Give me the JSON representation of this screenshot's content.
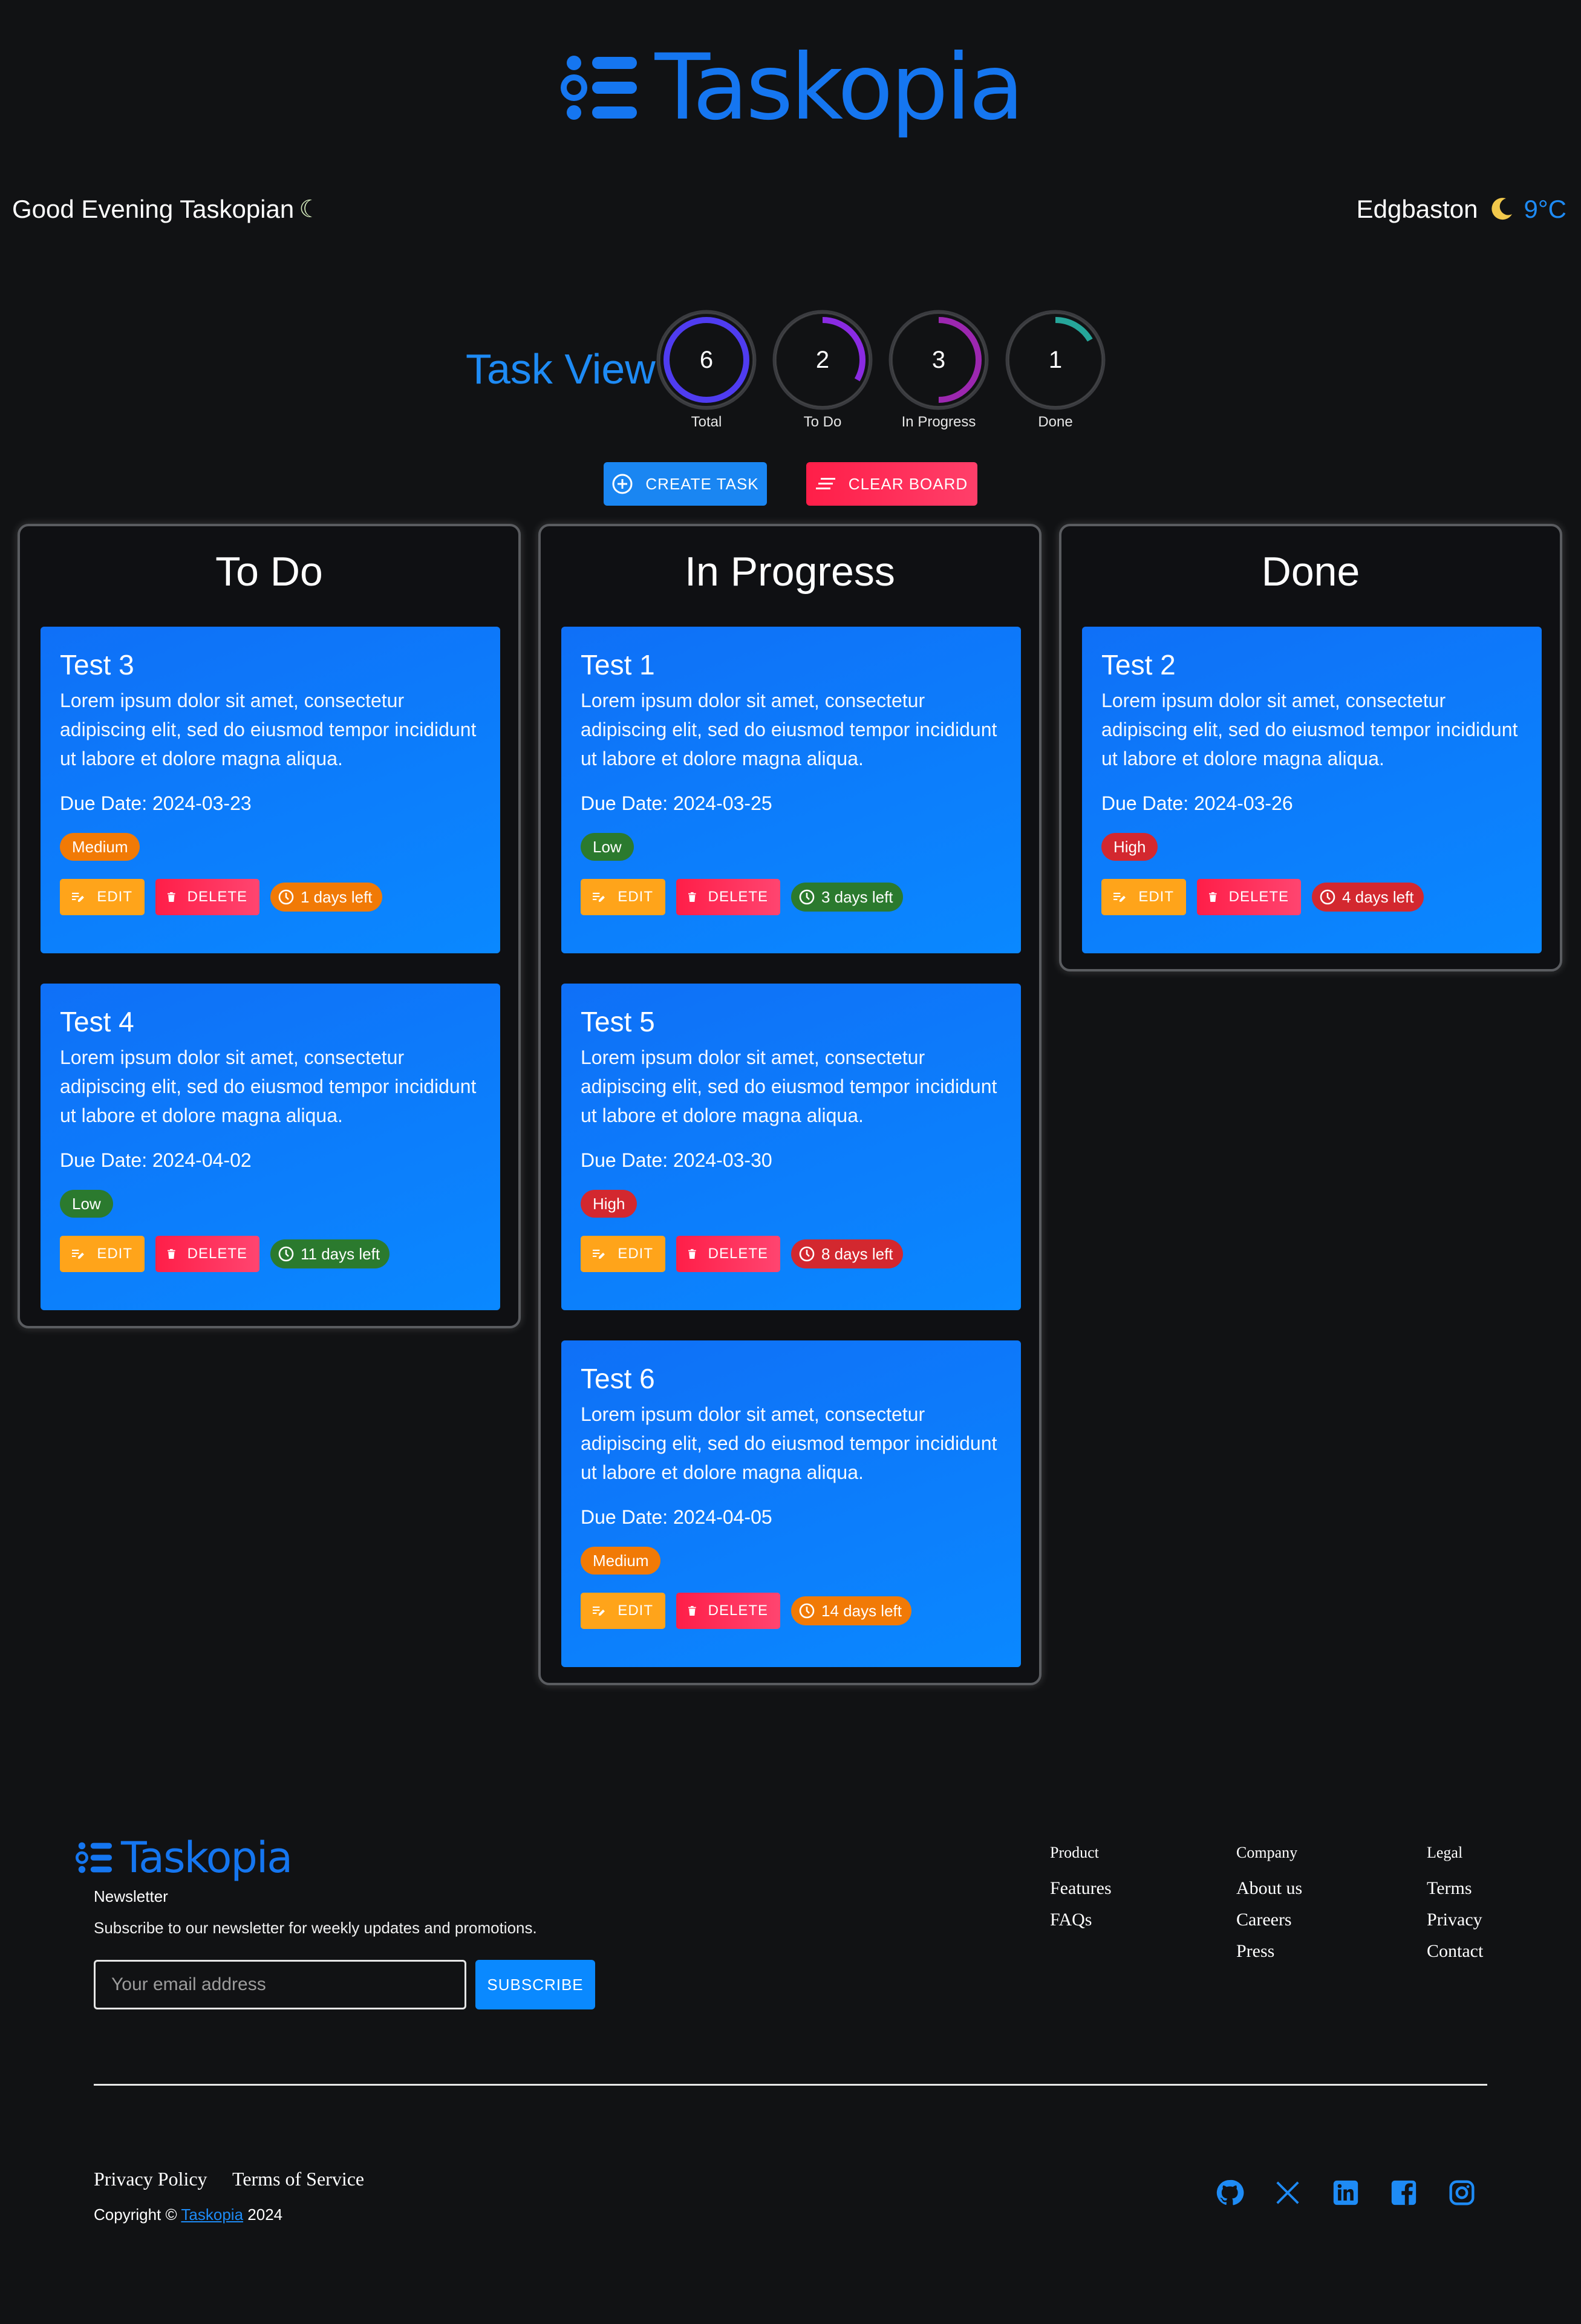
{
  "header": {
    "app_name": "Taskopia",
    "greeting": "Good Evening Taskopian",
    "location": "Edgbaston",
    "temperature": "9°C"
  },
  "stats": {
    "title": "Task View",
    "items": [
      {
        "label": "Total",
        "value": "6",
        "fraction": 1.0,
        "color": "#4f3cf0"
      },
      {
        "label": "To Do",
        "value": "2",
        "fraction": 0.333,
        "color": "#8a2be2"
      },
      {
        "label": "In Progress",
        "value": "3",
        "fraction": 0.5,
        "color": "#9c27b0"
      },
      {
        "label": "Done",
        "value": "1",
        "fraction": 0.167,
        "color": "#26a69a"
      }
    ]
  },
  "actions": {
    "create_label": "CREATE TASK",
    "clear_label": "CLEAR BOARD"
  },
  "board": {
    "edit_label": "EDIT",
    "delete_label": "DELETE",
    "columns": [
      {
        "title": "To Do",
        "cards": [
          {
            "title": "Test 3",
            "description": "Lorem ipsum dolor sit amet, consectetur adipiscing elit, sed do eiusmod tempor incididunt ut labore et dolore magna aliqua.",
            "due": "Due Date: 2024-03-23",
            "priority": "Medium",
            "days": "1 days left"
          },
          {
            "title": "Test 4",
            "description": "Lorem ipsum dolor sit amet, consectetur adipiscing elit, sed do eiusmod tempor incididunt ut labore et dolore magna aliqua.",
            "due": "Due Date: 2024-04-02",
            "priority": "Low",
            "days": "11 days left"
          }
        ]
      },
      {
        "title": "In Progress",
        "cards": [
          {
            "title": "Test 1",
            "description": "Lorem ipsum dolor sit amet, consectetur adipiscing elit, sed do eiusmod tempor incididunt ut labore et dolore magna aliqua.",
            "due": "Due Date: 2024-03-25",
            "priority": "Low",
            "days": "3 days left"
          },
          {
            "title": "Test 5",
            "description": "Lorem ipsum dolor sit amet, consectetur adipiscing elit, sed do eiusmod tempor incididunt ut labore et dolore magna aliqua.",
            "due": "Due Date: 2024-03-30",
            "priority": "High",
            "days": "8 days left"
          },
          {
            "title": "Test 6",
            "description": "Lorem ipsum dolor sit amet, consectetur adipiscing elit, sed do eiusmod tempor incididunt ut labore et dolore magna aliqua.",
            "due": "Due Date: 2024-04-05",
            "priority": "Medium",
            "days": "14 days left"
          }
        ]
      },
      {
        "title": "Done",
        "cards": [
          {
            "title": "Test 2",
            "description": "Lorem ipsum dolor sit amet, consectetur adipiscing elit, sed do eiusmod tempor incididunt ut labore et dolore magna aliqua.",
            "due": "Due Date: 2024-03-26",
            "priority": "High",
            "days": "4 days left"
          }
        ]
      }
    ]
  },
  "footer": {
    "app_name": "Taskopia",
    "newsletter_title": "Newsletter",
    "newsletter_text": "Subscribe to our newsletter for weekly updates and promotions.",
    "email_placeholder": "Your email address",
    "subscribe_label": "SUBSCRIBE",
    "link_columns": [
      {
        "title": "Product",
        "links": [
          "Features",
          "FAQs"
        ]
      },
      {
        "title": "Company",
        "links": [
          "About us",
          "Careers",
          "Press"
        ]
      },
      {
        "title": "Legal",
        "links": [
          "Terms",
          "Privacy",
          "Contact"
        ]
      }
    ],
    "privacy_label": "Privacy Policy",
    "terms_label": "Terms of Service",
    "copyright_prefix": "Copyright ©",
    "copyright_brand": "Taskopia",
    "copyright_year": "2024",
    "social": [
      "github-icon",
      "x-icon",
      "linkedin-icon",
      "facebook-icon",
      "instagram-icon"
    ],
    "accent_color": "#1e8bf5"
  }
}
